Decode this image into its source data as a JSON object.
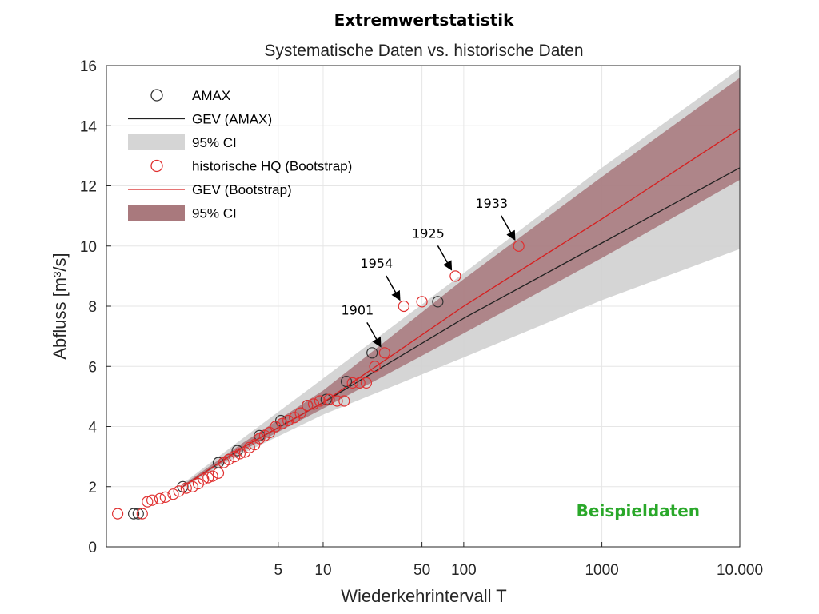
{
  "chart_data": {
    "type": "scatter",
    "title": "Extremwertstatistik",
    "subtitle": "Systematische Daten vs. historische Daten",
    "xlabel": "Wiederkehrintervall T",
    "ylabel": "Abfluss [m³/s]",
    "xscale": "gumbel-reduced-variate",
    "xlim": [
      1.02,
      10000
    ],
    "ylim": [
      0,
      16
    ],
    "grid": true,
    "xticks": [
      {
        "value": 5,
        "label": "5"
      },
      {
        "value": 10,
        "label": "10"
      },
      {
        "value": 50,
        "label": "50"
      },
      {
        "value": 100,
        "label": "100"
      },
      {
        "value": 1000,
        "label": "1000"
      },
      {
        "value": 10000,
        "label": "10.000"
      }
    ],
    "yticks": [
      {
        "value": 0,
        "label": "0"
      },
      {
        "value": 2,
        "label": "2"
      },
      {
        "value": 4,
        "label": "4"
      },
      {
        "value": 6,
        "label": "6"
      },
      {
        "value": 8,
        "label": "8"
      },
      {
        "value": 10,
        "label": "10"
      },
      {
        "value": 12,
        "label": "12"
      },
      {
        "value": 14,
        "label": "14"
      },
      {
        "value": 16,
        "label": "16"
      }
    ],
    "legend_position": "top-left",
    "legend": [
      {
        "label": "AMAX",
        "kind": "marker",
        "color": "#333333"
      },
      {
        "label": "GEV (AMAX)",
        "kind": "line",
        "color": "#222222"
      },
      {
        "label": "95% CI",
        "kind": "patch",
        "color": "#d0d0d0"
      },
      {
        "label": "historische HQ (Bootstrap)",
        "kind": "marker",
        "color": "#e03030"
      },
      {
        "label": "GEV (Bootstrap)",
        "kind": "line",
        "color": "#d62020"
      },
      {
        "label": "95% CI",
        "kind": "patch",
        "color": "#a06a6f"
      }
    ],
    "series": [
      {
        "name": "GEV (AMAX)",
        "type": "line",
        "color": "#222222",
        "x": [
          1.5,
          3,
          10,
          100,
          1000,
          10000
        ],
        "y": [
          2.0,
          3.3,
          4.8,
          7.6,
          10.1,
          12.6
        ]
      },
      {
        "name": "95% CI (AMAX)",
        "type": "band",
        "color": "#d0d0d0",
        "x": [
          1.5,
          3,
          10,
          100,
          1000,
          10000
        ],
        "lower": [
          1.95,
          3.1,
          4.4,
          6.3,
          8.2,
          9.9
        ],
        "upper": [
          2.1,
          3.6,
          5.6,
          9.1,
          12.6,
          15.9
        ]
      },
      {
        "name": "GEV (Bootstrap)",
        "type": "line",
        "color": "#d62020",
        "x": [
          1.5,
          3,
          10,
          100,
          1000,
          10000
        ],
        "y": [
          2.0,
          3.3,
          4.8,
          8.0,
          10.9,
          13.9
        ]
      },
      {
        "name": "95% CI (Bootstrap)",
        "type": "band",
        "color": "#a06a6f",
        "x": [
          1.5,
          3,
          10,
          100,
          1000,
          10000
        ],
        "lower": [
          1.98,
          3.2,
          4.6,
          7.1,
          9.6,
          12.2
        ],
        "upper": [
          2.05,
          3.45,
          5.2,
          8.9,
          12.3,
          15.6
        ]
      },
      {
        "name": "AMAX",
        "type": "scatter",
        "color": "#333333",
        "x": [
          1.09,
          1.11,
          1.5,
          2.2,
          2.8,
          3.8,
          5.2,
          7.8,
          10.5,
          14.5,
          22,
          65
        ],
        "y": [
          1.1,
          1.1,
          2.0,
          2.8,
          3.2,
          3.7,
          4.2,
          4.7,
          4.9,
          5.5,
          6.45,
          8.15
        ]
      },
      {
        "name": "historische HQ (Bootstrap)",
        "type": "scatter",
        "color": "#e03030",
        "x": [
          1.04,
          1.13,
          1.16,
          1.19,
          1.25,
          1.3,
          1.38,
          1.45,
          1.55,
          1.65,
          1.75,
          1.85,
          1.95,
          2.05,
          2.2,
          2.35,
          2.5,
          2.7,
          2.9,
          3.1,
          3.3,
          3.55,
          3.8,
          4.1,
          4.4,
          4.8,
          5.3,
          5.8,
          6.4,
          7.0,
          7.8,
          8.6,
          9.5,
          11,
          12.5,
          14,
          16,
          18,
          20,
          23,
          27,
          37,
          50,
          87,
          250
        ],
        "y": [
          1.1,
          1.1,
          1.5,
          1.55,
          1.6,
          1.65,
          1.75,
          1.85,
          1.95,
          2.0,
          2.1,
          2.25,
          2.3,
          2.35,
          2.45,
          2.8,
          2.9,
          3.0,
          3.1,
          3.15,
          3.3,
          3.4,
          3.6,
          3.7,
          3.8,
          4.0,
          4.1,
          4.2,
          4.3,
          4.45,
          4.7,
          4.75,
          4.85,
          4.9,
          4.85,
          4.85,
          5.45,
          5.45,
          5.45,
          6.0,
          6.45,
          8.0,
          8.15,
          9.0,
          10.0
        ]
      }
    ],
    "annotations": [
      {
        "label": "1901",
        "x": 27,
        "y": 6.45
      },
      {
        "label": "1954",
        "x": 37,
        "y": 8.0
      },
      {
        "label": "1925",
        "x": 87,
        "y": 9.0
      },
      {
        "label": "1933",
        "x": 250,
        "y": 10.0
      }
    ],
    "watermark": {
      "label": "Beispieldaten",
      "color": "#2aa82a"
    }
  }
}
